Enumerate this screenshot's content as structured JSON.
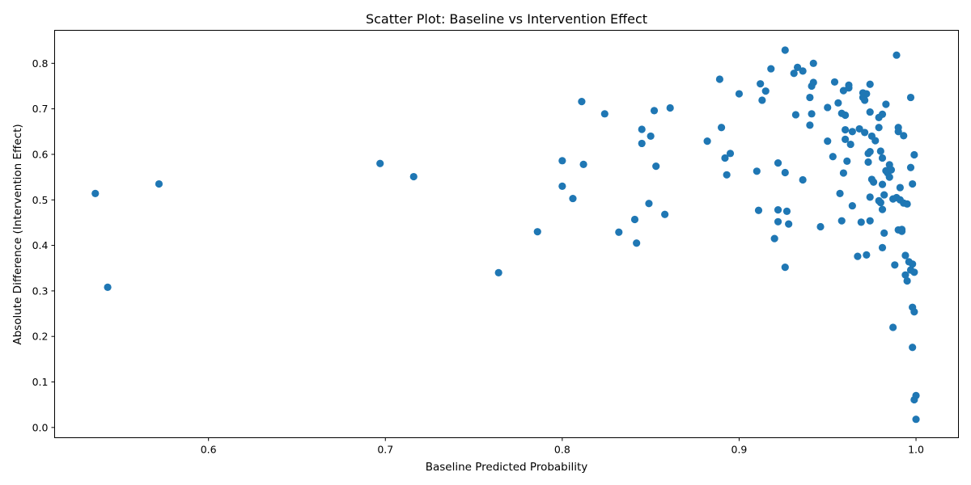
{
  "chart_data": {
    "type": "scatter",
    "title": "Scatter Plot: Baseline vs Intervention Effect",
    "xlabel": "Baseline Predicted Probability",
    "ylabel": "Absolute Difference (Intervention Effect)",
    "xlim": [
      0.513,
      1.024
    ],
    "ylim": [
      -0.0225,
      0.8725
    ],
    "xticks": [
      0.6,
      0.7,
      0.8,
      0.9,
      1.0
    ],
    "xtick_labels": [
      "0.6",
      "0.7",
      "0.8",
      "0.9",
      "1.0"
    ],
    "yticks": [
      0.0,
      0.1,
      0.2,
      0.3,
      0.4,
      0.5,
      0.6,
      0.7,
      0.8
    ],
    "ytick_labels": [
      "0.0",
      "0.1",
      "0.2",
      "0.3",
      "0.4",
      "0.5",
      "0.6",
      "0.7",
      "0.8"
    ],
    "grid": false,
    "marker_color": "#1f77b4",
    "points": [
      [
        0.536,
        0.514
      ],
      [
        0.543,
        0.308
      ],
      [
        0.572,
        0.535
      ],
      [
        0.697,
        0.58
      ],
      [
        0.716,
        0.551
      ],
      [
        0.764,
        0.34
      ],
      [
        0.786,
        0.43
      ],
      [
        0.8,
        0.586
      ],
      [
        0.8,
        0.53
      ],
      [
        0.806,
        0.503
      ],
      [
        0.811,
        0.716
      ],
      [
        0.812,
        0.578
      ],
      [
        0.824,
        0.689
      ],
      [
        0.832,
        0.429
      ],
      [
        0.841,
        0.457
      ],
      [
        0.842,
        0.405
      ],
      [
        0.845,
        0.655
      ],
      [
        0.845,
        0.624
      ],
      [
        0.849,
        0.492
      ],
      [
        0.85,
        0.64
      ],
      [
        0.852,
        0.696
      ],
      [
        0.853,
        0.574
      ],
      [
        0.858,
        0.468
      ],
      [
        0.861,
        0.702
      ],
      [
        0.882,
        0.629
      ],
      [
        0.889,
        0.765
      ],
      [
        0.89,
        0.659
      ],
      [
        0.892,
        0.592
      ],
      [
        0.893,
        0.555
      ],
      [
        0.895,
        0.602
      ],
      [
        0.9,
        0.733
      ],
      [
        0.91,
        0.563
      ],
      [
        0.911,
        0.477
      ],
      [
        0.912,
        0.755
      ],
      [
        0.913,
        0.719
      ],
      [
        0.915,
        0.739
      ],
      [
        0.918,
        0.788
      ],
      [
        0.92,
        0.415
      ],
      [
        0.922,
        0.581
      ],
      [
        0.922,
        0.478
      ],
      [
        0.922,
        0.452
      ],
      [
        0.926,
        0.56
      ],
      [
        0.926,
        0.352
      ],
      [
        0.926,
        0.829
      ],
      [
        0.927,
        0.475
      ],
      [
        0.928,
        0.447
      ],
      [
        0.931,
        0.778
      ],
      [
        0.932,
        0.687
      ],
      [
        0.933,
        0.791
      ],
      [
        0.936,
        0.783
      ],
      [
        0.936,
        0.544
      ],
      [
        0.94,
        0.725
      ],
      [
        0.94,
        0.664
      ],
      [
        0.941,
        0.689
      ],
      [
        0.941,
        0.75
      ],
      [
        0.942,
        0.758
      ],
      [
        0.942,
        0.8
      ],
      [
        0.946,
        0.441
      ],
      [
        0.95,
        0.703
      ],
      [
        0.95,
        0.629
      ],
      [
        0.953,
        0.595
      ],
      [
        0.954,
        0.759
      ],
      [
        0.956,
        0.713
      ],
      [
        0.957,
        0.514
      ],
      [
        0.958,
        0.454
      ],
      [
        0.958,
        0.69
      ],
      [
        0.959,
        0.74
      ],
      [
        0.959,
        0.559
      ],
      [
        0.96,
        0.654
      ],
      [
        0.96,
        0.686
      ],
      [
        0.96,
        0.633
      ],
      [
        0.961,
        0.585
      ],
      [
        0.962,
        0.746
      ],
      [
        0.962,
        0.752
      ],
      [
        0.963,
        0.622
      ],
      [
        0.964,
        0.65
      ],
      [
        0.964,
        0.487
      ],
      [
        0.967,
        0.376
      ],
      [
        0.968,
        0.656
      ],
      [
        0.969,
        0.451
      ],
      [
        0.97,
        0.725
      ],
      [
        0.97,
        0.735
      ],
      [
        0.971,
        0.719
      ],
      [
        0.971,
        0.648
      ],
      [
        0.972,
        0.379
      ],
      [
        0.972,
        0.733
      ],
      [
        0.973,
        0.583
      ],
      [
        0.973,
        0.602
      ],
      [
        0.974,
        0.754
      ],
      [
        0.974,
        0.693
      ],
      [
        0.974,
        0.454
      ],
      [
        0.974,
        0.506
      ],
      [
        0.974,
        0.606
      ],
      [
        0.975,
        0.64
      ],
      [
        0.975,
        0.545
      ],
      [
        0.976,
        0.539
      ],
      [
        0.977,
        0.63
      ],
      [
        0.979,
        0.681
      ],
      [
        0.979,
        0.659
      ],
      [
        0.979,
        0.498
      ],
      [
        0.98,
        0.607
      ],
      [
        0.98,
        0.494
      ],
      [
        0.981,
        0.688
      ],
      [
        0.981,
        0.534
      ],
      [
        0.981,
        0.479
      ],
      [
        0.981,
        0.395
      ],
      [
        0.981,
        0.592
      ],
      [
        0.982,
        0.511
      ],
      [
        0.982,
        0.427
      ],
      [
        0.983,
        0.71
      ],
      [
        0.983,
        0.564
      ],
      [
        0.984,
        0.559
      ],
      [
        0.985,
        0.55
      ],
      [
        0.985,
        0.577
      ],
      [
        0.986,
        0.566
      ],
      [
        0.987,
        0.22
      ],
      [
        0.987,
        0.502
      ],
      [
        0.988,
        0.357
      ],
      [
        0.989,
        0.505
      ],
      [
        0.989,
        0.818
      ],
      [
        0.99,
        0.434
      ],
      [
        0.99,
        0.659
      ],
      [
        0.99,
        0.65
      ],
      [
        0.991,
        0.527
      ],
      [
        0.991,
        0.5
      ],
      [
        0.992,
        0.431
      ],
      [
        0.992,
        0.435
      ],
      [
        0.993,
        0.641
      ],
      [
        0.993,
        0.493
      ],
      [
        0.994,
        0.378
      ],
      [
        0.994,
        0.335
      ],
      [
        0.995,
        0.491
      ],
      [
        0.995,
        0.322
      ],
      [
        0.996,
        0.364
      ],
      [
        0.997,
        0.571
      ],
      [
        0.997,
        0.346
      ],
      [
        0.997,
        0.725
      ],
      [
        0.998,
        0.176
      ],
      [
        0.998,
        0.535
      ],
      [
        0.998,
        0.359
      ],
      [
        0.998,
        0.264
      ],
      [
        0.999,
        0.341
      ],
      [
        0.999,
        0.254
      ],
      [
        0.999,
        0.599
      ],
      [
        0.999,
        0.061
      ],
      [
        1.0,
        0.07
      ],
      [
        1.0,
        0.018
      ]
    ]
  }
}
